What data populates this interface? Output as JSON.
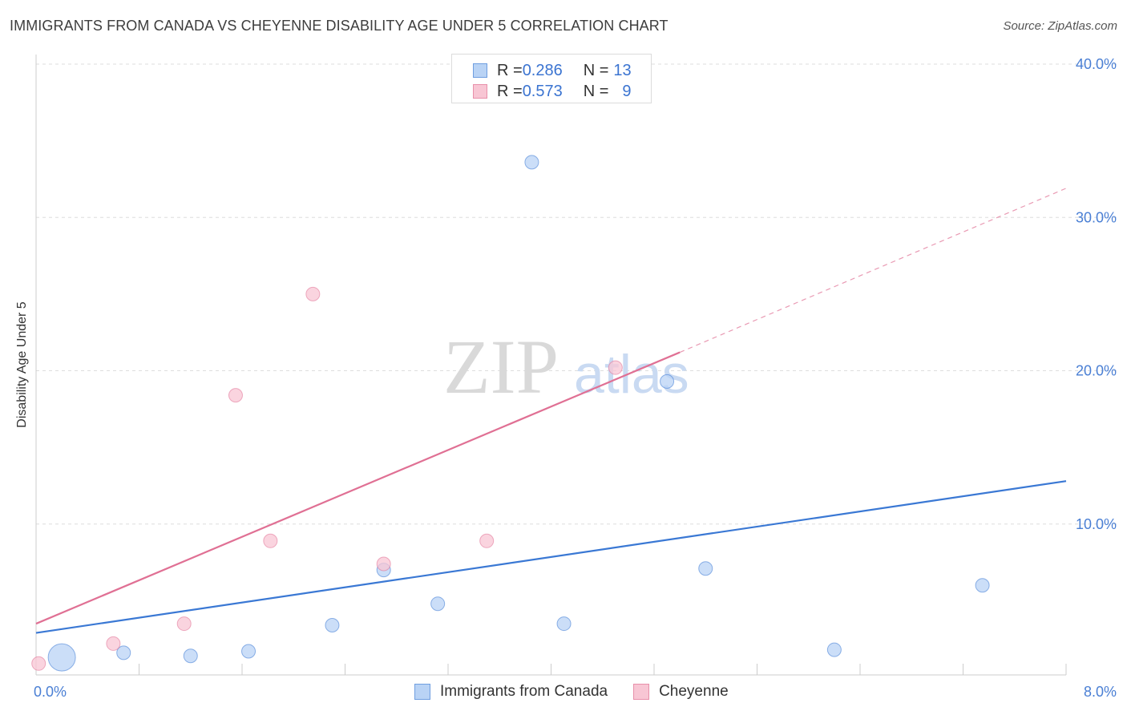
{
  "title": "IMMIGRANTS FROM CANADA VS CHEYENNE DISABILITY AGE UNDER 5 CORRELATION CHART",
  "source": "Source: ZipAtlas.com",
  "watermark": {
    "zip": "ZIP",
    "atlas": "atlas"
  },
  "legend_top": {
    "rows": [
      {
        "r_label": "R = ",
        "r_value": "0.286",
        "n_label": "N = ",
        "n_value": "13",
        "fill": "#b9d3f5",
        "stroke": "#6f9ee0"
      },
      {
        "r_label": "R = ",
        "r_value": "0.573",
        "n_label": "N = ",
        "n_value": "9",
        "fill": "#f8c6d4",
        "stroke": "#e890aa"
      }
    ]
  },
  "legend_bottom": [
    {
      "label": "Immigrants from Canada",
      "fill": "#b9d3f5",
      "stroke": "#6f9ee0"
    },
    {
      "label": "Cheyenne",
      "fill": "#f8c6d4",
      "stroke": "#e890aa"
    }
  ],
  "chart_data": {
    "type": "scatter",
    "title": "IMMIGRANTS FROM CANADA VS CHEYENNE DISABILITY AGE UNDER 5 CORRELATION CHART",
    "xlabel": "",
    "ylabel": "Disability Age Under 5",
    "xlim": [
      0,
      8
    ],
    "ylim": [
      0,
      42
    ],
    "x_tick_labels": [
      "0.0%",
      "8.0%"
    ],
    "y_ticks": [
      10,
      20,
      30,
      40
    ],
    "y_tick_labels": [
      "10.0%",
      "20.0%",
      "30.0%",
      "40.0%"
    ],
    "x_minor_ticks": [
      0.8,
      1.6,
      2.4,
      3.2,
      4.0,
      4.8,
      5.6,
      6.4,
      7.2,
      8.0
    ],
    "grid": true,
    "series": [
      {
        "name": "Immigrants from Canada",
        "color": "#3a78d4",
        "fill": "#b9d3f5",
        "points": [
          {
            "x": 0.2,
            "y": 1.3,
            "size": "large"
          },
          {
            "x": 0.68,
            "y": 1.6
          },
          {
            "x": 1.2,
            "y": 1.4
          },
          {
            "x": 1.65,
            "y": 1.7
          },
          {
            "x": 2.3,
            "y": 3.4
          },
          {
            "x": 2.7,
            "y": 7.0
          },
          {
            "x": 3.12,
            "y": 4.8
          },
          {
            "x": 3.85,
            "y": 33.6
          },
          {
            "x": 4.1,
            "y": 3.5
          },
          {
            "x": 4.9,
            "y": 19.3
          },
          {
            "x": 5.2,
            "y": 7.1
          },
          {
            "x": 6.2,
            "y": 1.8
          },
          {
            "x": 7.35,
            "y": 6.0
          }
        ],
        "trend": {
          "x0": 0.0,
          "y0": 2.9,
          "x1": 8.0,
          "y1": 12.8,
          "dashed_extension": false
        }
      },
      {
        "name": "Cheyenne",
        "color": "#e07094",
        "fill": "#f8c6d4",
        "points": [
          {
            "x": 0.02,
            "y": 0.9
          },
          {
            "x": 0.6,
            "y": 2.2
          },
          {
            "x": 1.15,
            "y": 3.5
          },
          {
            "x": 1.55,
            "y": 18.4
          },
          {
            "x": 1.82,
            "y": 8.9
          },
          {
            "x": 2.15,
            "y": 25.0
          },
          {
            "x": 2.7,
            "y": 7.4
          },
          {
            "x": 3.5,
            "y": 8.9
          },
          {
            "x": 4.5,
            "y": 20.2
          }
        ],
        "trend": {
          "x0": 0.0,
          "y0": 3.5,
          "x1": 5.0,
          "y1": 21.2,
          "ext_x1": 8.0,
          "ext_y1": 31.9,
          "dashed_extension": true
        }
      }
    ]
  }
}
